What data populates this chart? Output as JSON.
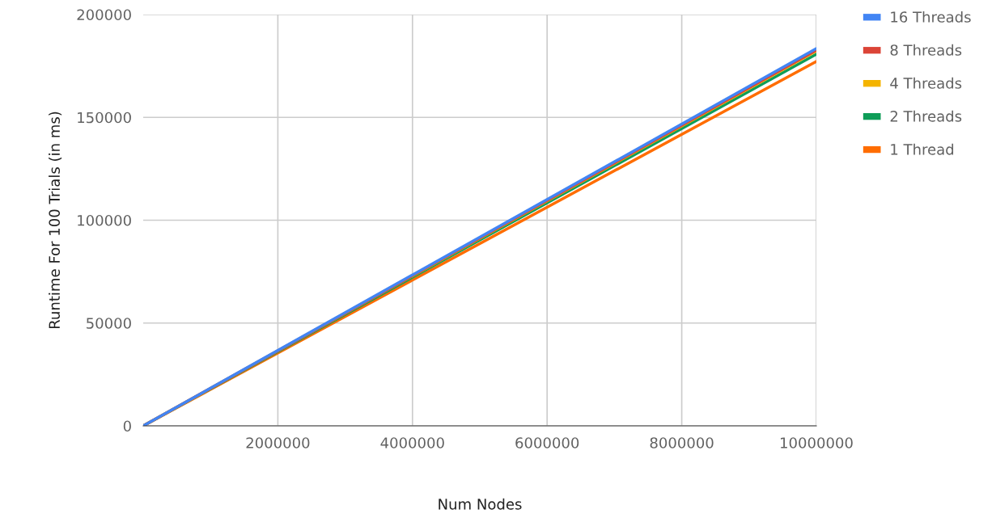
{
  "chart_data": {
    "type": "line",
    "xlabel": "Num Nodes",
    "ylabel": "Runtime For 100 Trials (in ms)",
    "x": [
      0,
      10000000
    ],
    "series": [
      {
        "name": "16 Threads",
        "color": "#4285f4",
        "values": [
          0,
          183500
        ]
      },
      {
        "name": "8 Threads",
        "color": "#db4437",
        "values": [
          0,
          182700
        ]
      },
      {
        "name": "4 Threads",
        "color": "#f4b400",
        "values": [
          0,
          182300
        ]
      },
      {
        "name": "2 Threads",
        "color": "#0f9d58",
        "values": [
          0,
          180700
        ]
      },
      {
        "name": "1 Thread",
        "color": "#ff6d00",
        "values": [
          0,
          177200
        ]
      }
    ],
    "xlim": [
      0,
      10000000
    ],
    "xticks": [
      2000000,
      4000000,
      6000000,
      8000000,
      10000000
    ],
    "ylim": [
      0,
      200000
    ],
    "yticks": [
      0,
      50000,
      100000,
      150000,
      200000
    ],
    "grid": true,
    "legend": "top right",
    "marker": "none",
    "line_style": "solid"
  }
}
